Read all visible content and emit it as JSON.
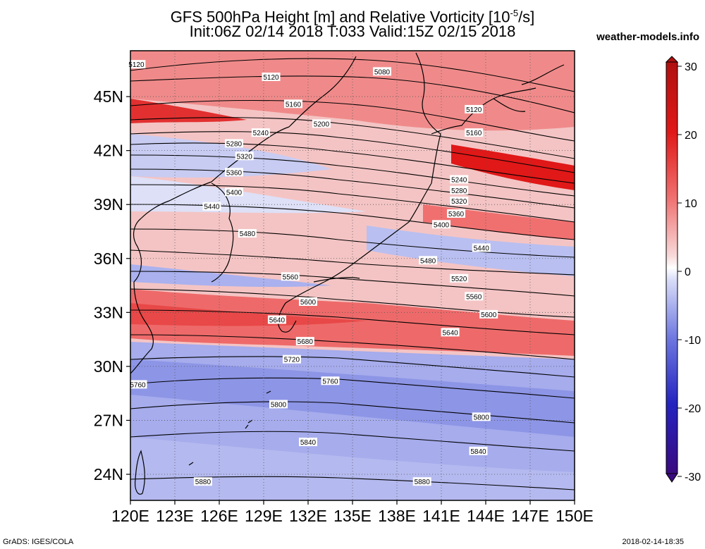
{
  "header": {
    "title_line1": "GFS 500hPa Height [m] and Relative Vorticity [10",
    "title_sup": "-5",
    "title_tail": "/s]",
    "title_line2": "Init:06Z 02/14 2018 T:033 Valid:15Z 02/15 2018",
    "site": "weather-models.info"
  },
  "footer": {
    "credit": "GrADS: IGES/COLA",
    "timestamp": "2018-02-14-18:35"
  },
  "map": {
    "lon_labels": [
      "120E",
      "123E",
      "126E",
      "129E",
      "132E",
      "135E",
      "138E",
      "141E",
      "144E",
      "147E",
      "150E"
    ],
    "lat_labels": [
      "45N",
      "42N",
      "39N",
      "36N",
      "33N",
      "30N",
      "27N",
      "24N"
    ],
    "contour_labels": [
      {
        "text": "5120",
        "lon": 120.4,
        "lat": 46.8
      },
      {
        "text": "5120",
        "lon": 129.5,
        "lat": 46.1
      },
      {
        "text": "5080",
        "lon": 137.0,
        "lat": 46.4
      },
      {
        "text": "5160",
        "lon": 131.0,
        "lat": 44.6
      },
      {
        "text": "5120",
        "lon": 143.2,
        "lat": 44.3
      },
      {
        "text": "5200",
        "lon": 132.9,
        "lat": 43.5
      },
      {
        "text": "5160",
        "lon": 143.2,
        "lat": 43.0
      },
      {
        "text": "5240",
        "lon": 128.8,
        "lat": 43.0
      },
      {
        "text": "5280",
        "lon": 127.0,
        "lat": 42.4
      },
      {
        "text": "5320",
        "lon": 127.7,
        "lat": 41.7
      },
      {
        "text": "5360",
        "lon": 127.0,
        "lat": 40.8
      },
      {
        "text": "5240",
        "lon": 142.2,
        "lat": 40.4
      },
      {
        "text": "5280",
        "lon": 142.2,
        "lat": 39.8
      },
      {
        "text": "5400",
        "lon": 127.0,
        "lat": 39.7
      },
      {
        "text": "5320",
        "lon": 142.2,
        "lat": 39.2
      },
      {
        "text": "5440",
        "lon": 125.5,
        "lat": 38.9
      },
      {
        "text": "5360",
        "lon": 142.0,
        "lat": 38.5
      },
      {
        "text": "5400",
        "lon": 141.0,
        "lat": 37.9
      },
      {
        "text": "5480",
        "lon": 127.9,
        "lat": 37.4
      },
      {
        "text": "5440",
        "lon": 143.7,
        "lat": 36.6
      },
      {
        "text": "5480",
        "lon": 140.1,
        "lat": 35.9
      },
      {
        "text": "5560",
        "lon": 130.8,
        "lat": 35.0
      },
      {
        "text": "5520",
        "lon": 142.2,
        "lat": 34.9
      },
      {
        "text": "5600",
        "lon": 132.0,
        "lat": 33.6
      },
      {
        "text": "5560",
        "lon": 143.2,
        "lat": 33.9
      },
      {
        "text": "5640",
        "lon": 129.9,
        "lat": 32.6
      },
      {
        "text": "5600",
        "lon": 144.2,
        "lat": 32.9
      },
      {
        "text": "5640",
        "lon": 141.6,
        "lat": 31.9
      },
      {
        "text": "5680",
        "lon": 131.8,
        "lat": 31.4
      },
      {
        "text": "5720",
        "lon": 130.9,
        "lat": 30.4
      },
      {
        "text": "5760",
        "lon": 133.5,
        "lat": 29.2
      },
      {
        "text": "5760",
        "lon": 120.5,
        "lat": 29.0
      },
      {
        "text": "5800",
        "lon": 130.0,
        "lat": 27.9
      },
      {
        "text": "5800",
        "lon": 143.7,
        "lat": 27.2
      },
      {
        "text": "5840",
        "lon": 132.0,
        "lat": 25.8
      },
      {
        "text": "5840",
        "lon": 143.5,
        "lat": 25.3
      },
      {
        "text": "5880",
        "lon": 124.9,
        "lat": 23.6
      },
      {
        "text": "5880",
        "lon": 139.7,
        "lat": 23.6
      }
    ]
  },
  "colorbar": {
    "title": "Relative Vorticity [10^-5/s]",
    "ticks": [
      "30",
      "20",
      "10",
      "0",
      "-10",
      "-20",
      "-30"
    ],
    "colors": {
      "max": "#b01010",
      "strong_pos": "#e01818",
      "pos": "#f07070",
      "weak_pos": "#f8c8c8",
      "zero": "#ffffff",
      "weak_neg": "#c8cdf5",
      "neg": "#6f78e0",
      "strong_neg": "#2424c0",
      "min": "#3a0a80"
    }
  }
}
